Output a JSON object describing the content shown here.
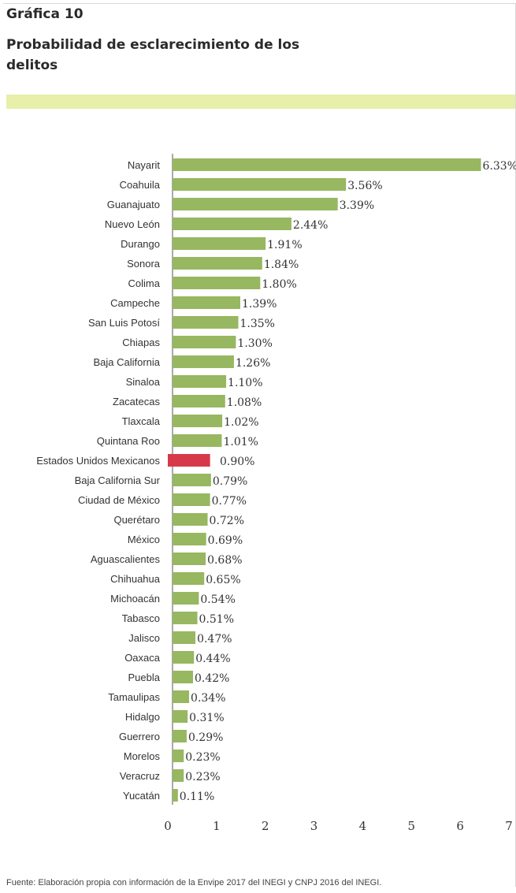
{
  "header": {
    "chart_number": "Gráfica 10",
    "title": "Probabilidad de esclarecimiento de los delitos"
  },
  "footer": {
    "source": "Fuente: Elaboración propia con información de la Envipe 2017 del INEGI y CNPJ 2016 del INEGI."
  },
  "colors": {
    "bar": "#97b760",
    "highlight": "#d63a4a",
    "band": "#e7efa9"
  },
  "chart_data": {
    "type": "bar",
    "orientation": "horizontal",
    "xlim": [
      0,
      7
    ],
    "x_ticks": [
      "0",
      "1",
      "2",
      "3",
      "4",
      "5",
      "6",
      "7"
    ],
    "grid": false,
    "highlight_category": "Estados Unidos Mexicanos",
    "categories": [
      "Nayarit",
      "Coahuila",
      "Guanajuato",
      "Nuevo León",
      "Durango",
      "Sonora",
      "Colima",
      "Campeche",
      "San Luis Potosí",
      "Chiapas",
      "Baja California",
      "Sinaloa",
      "Zacatecas",
      "Tlaxcala",
      "Quintana Roo",
      "Estados Unidos Mexicanos",
      "Baja California Sur",
      "Ciudad de México",
      "Querétaro",
      "México",
      "Aguascalientes",
      "Chihuahua",
      "Michoacán",
      "Tabasco",
      "Jalisco",
      "Oaxaca",
      "Puebla",
      "Tamaulipas",
      "Hidalgo",
      "Guerrero",
      "Morelos",
      "Veracruz",
      "Yucatán"
    ],
    "values": [
      6.33,
      3.56,
      3.39,
      2.44,
      1.91,
      1.84,
      1.8,
      1.39,
      1.35,
      1.3,
      1.26,
      1.1,
      1.08,
      1.02,
      1.01,
      0.9,
      0.79,
      0.77,
      0.72,
      0.69,
      0.68,
      0.65,
      0.54,
      0.51,
      0.47,
      0.44,
      0.42,
      0.34,
      0.31,
      0.29,
      0.23,
      0.23,
      0.11
    ],
    "value_labels": [
      "6.33%",
      "3.56%",
      "3.39%",
      "2.44%",
      "1.91%",
      "1.84%",
      "1.80%",
      "1.39%",
      "1.35%",
      "1.30%",
      "1.26%",
      "1.10%",
      "1.08%",
      "1.02%",
      "1.01%",
      "0.90%",
      "0.79%",
      "0.77%",
      "0.72%",
      "0.69%",
      "0.68%",
      "0.65%",
      "0.54%",
      "0.51%",
      "0.47%",
      "0.44%",
      "0.42%",
      "0.34%",
      "0.31%",
      "0.29%",
      "0.23%",
      "0.23%",
      "0.11%"
    ]
  }
}
